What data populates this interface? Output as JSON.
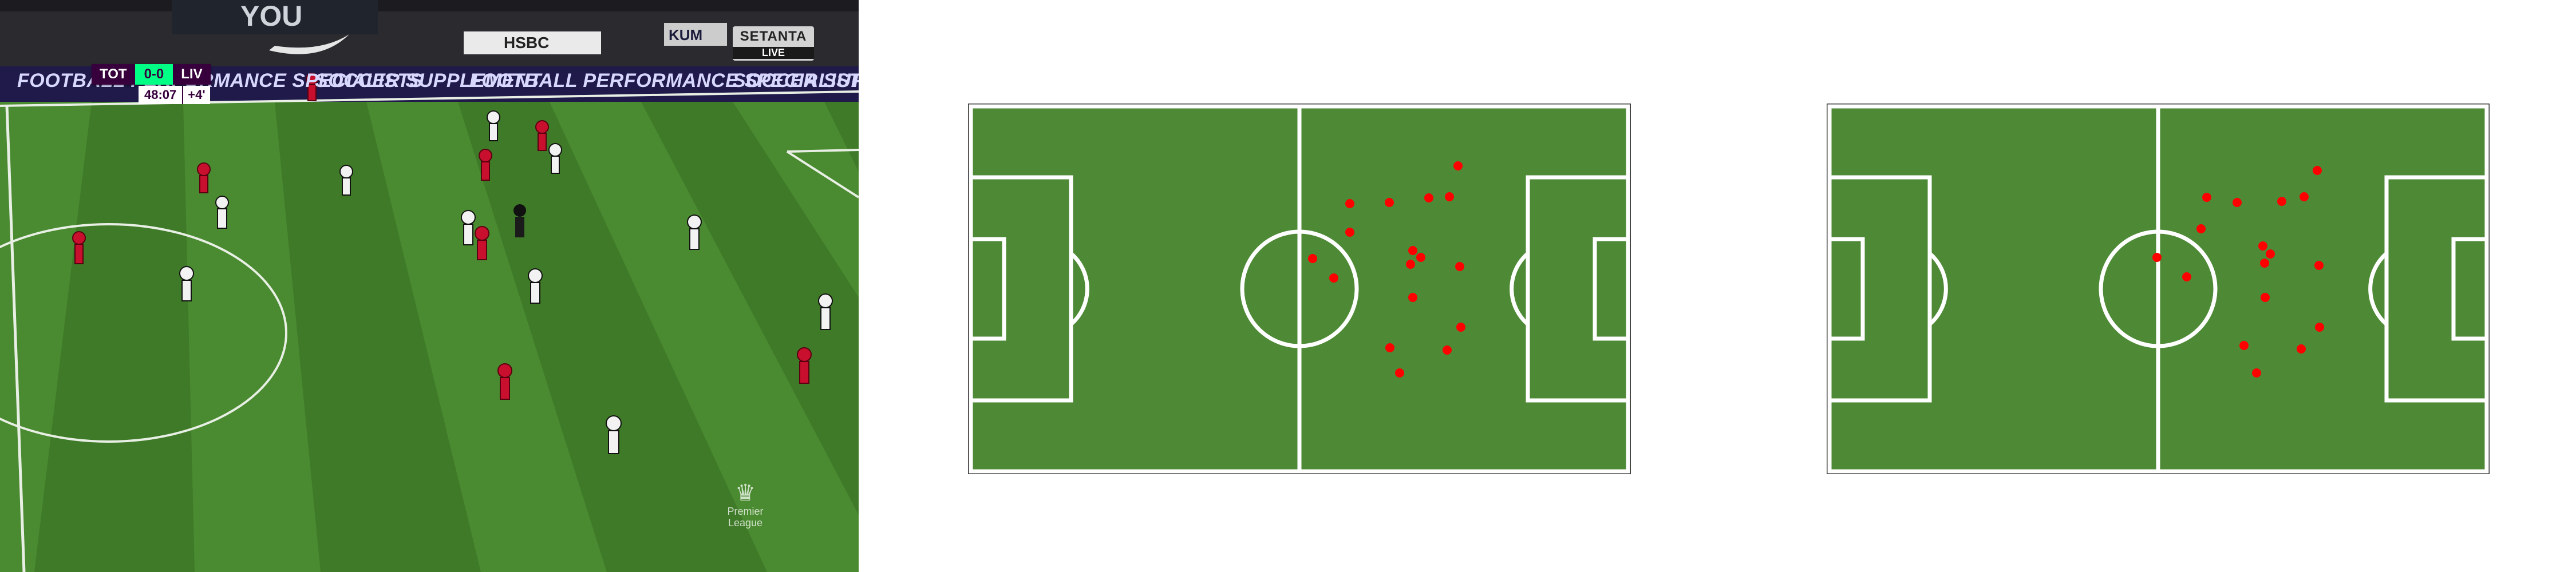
{
  "broadcast": {
    "scorebug": {
      "home": "TOT",
      "score": "0-0",
      "away": "LIV",
      "clock": "48:07",
      "added_time": "+4'"
    },
    "channel": {
      "name": "SETANTA",
      "status": "LIVE"
    },
    "stadium_banners": {
      "top": "YOU",
      "sponsor": "HSBC",
      "kumho": "KUM"
    },
    "led_boards": [
      "FOOTBALL PERFORMANCE SPECIALISTS",
      "SOCCER SUPPLEMENT",
      "FOOTBALL PERFORMANCE SPECIALISTS",
      "SOCCER SUPPLEMENT"
    ],
    "watermark": "Premier League",
    "colors": {
      "home_kit": "#f2f2f2",
      "away_kit": "#c8102e",
      "pitch": "#3f7a28"
    }
  },
  "diagrams": [
    {
      "name": "pitch-diagram-1",
      "player_color": "#ff0000",
      "pitch_color": "#4e8a36"
    },
    {
      "name": "pitch-diagram-2",
      "player_color": "#ff0000",
      "pitch_color": "#4e8a36"
    }
  ]
}
